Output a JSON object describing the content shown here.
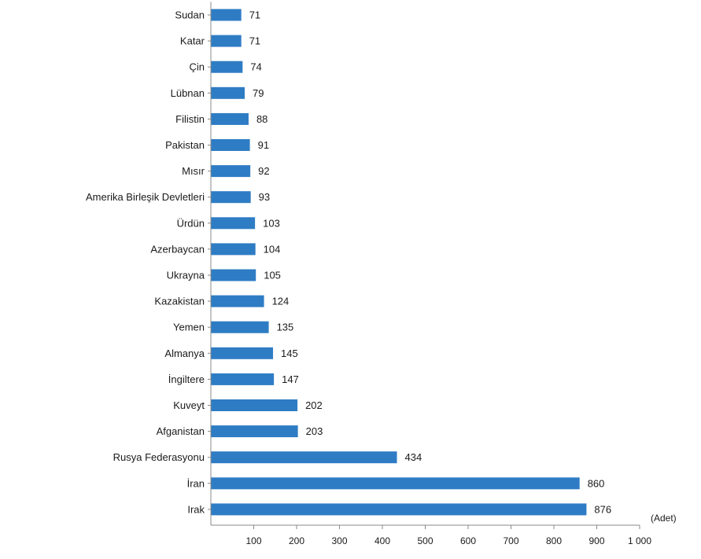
{
  "chart_data": {
    "type": "bar",
    "orientation": "horizontal",
    "title": "",
    "xlabel": "(Adet)",
    "ylabel": "",
    "xlim": [
      0,
      1000
    ],
    "xticks": [
      100,
      200,
      300,
      400,
      500,
      600,
      700,
      800,
      900,
      1000
    ],
    "xtick_labels": [
      "100",
      "200",
      "300",
      "400",
      "500",
      "600",
      "700",
      "800",
      "900",
      "1 000"
    ],
    "grid": false,
    "legend": "none",
    "bar_color": "#2e7cc4",
    "categories": [
      "Sudan",
      "Katar",
      "Çin",
      "Lübnan",
      "Filistin",
      "Pakistan",
      "Mısır",
      "Amerika Birleşik Devletleri",
      "Ürdün",
      "Azerbaycan",
      "Ukrayna",
      "Kazakistan",
      "Yemen",
      "Almanya",
      "İngiltere",
      "Kuveyt",
      "Afganistan",
      "Rusya Federasyonu",
      "İran",
      "Irak"
    ],
    "values": [
      71,
      71,
      74,
      79,
      88,
      91,
      92,
      93,
      103,
      104,
      105,
      124,
      135,
      145,
      147,
      202,
      203,
      434,
      860,
      876
    ],
    "value_labels": [
      "71",
      "71",
      "74",
      "79",
      "88",
      "91",
      "92",
      "93",
      "103",
      "104",
      "105",
      "124",
      "135",
      "145",
      "147",
      "202",
      "203",
      "434",
      "860",
      "876"
    ]
  }
}
